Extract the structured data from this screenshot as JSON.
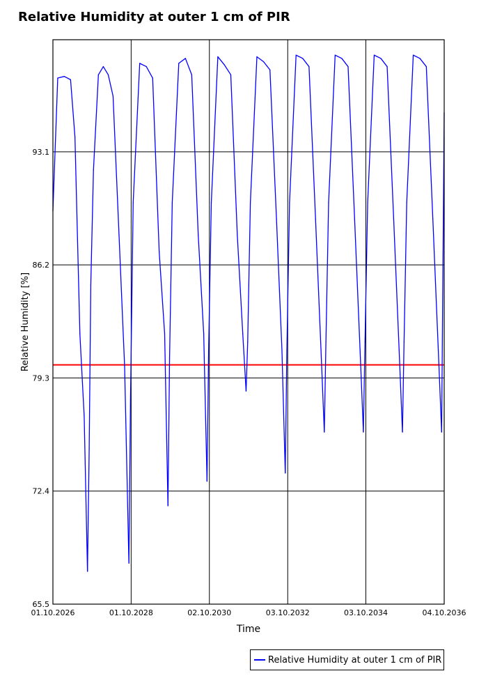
{
  "chart_data": {
    "type": "line",
    "title": "Relative Humidity at outer 1 cm of PIR",
    "xlabel": "Time",
    "ylabel": "Relative Humidity [%]",
    "ylim": [
      65.5,
      99.94
    ],
    "y_ticks": [
      "65.5",
      "72.4",
      "79.3",
      "86.2",
      "93.1"
    ],
    "x_ticks": [
      "01.10.2026",
      "01.10.2028",
      "02.10.2030",
      "03.10.2032",
      "03.10.2034",
      "04.10.2036"
    ],
    "xlim": [
      "2026-10-01",
      "2036-10-04"
    ],
    "grid": true,
    "legend_position": "bottom-right",
    "reference_line": {
      "y": 80.1,
      "color": "#ff0000"
    },
    "series": [
      {
        "name": "Relative Humidity at outer 1 cm of PIR",
        "color": "#0000ff",
        "x": [
          "2026-10-01",
          "2026-11-15",
          "2027-01-15",
          "2027-03-15",
          "2027-04-25",
          "2027-06-10",
          "2027-07-20",
          "2027-08-20",
          "2027-09-05",
          "2027-09-20",
          "2027-10-15",
          "2027-11-30",
          "2028-01-15",
          "2028-03-01",
          "2028-04-15",
          "2028-06-10",
          "2028-08-01",
          "2028-09-10",
          "2028-09-25",
          "2028-10-20",
          "2028-12-20",
          "2029-02-20",
          "2029-04-20",
          "2029-06-20",
          "2029-08-10",
          "2029-09-10",
          "2029-09-25",
          "2029-10-20",
          "2029-12-20",
          "2030-02-20",
          "2030-04-20",
          "2030-06-20",
          "2030-08-10",
          "2030-09-10",
          "2030-09-25",
          "2030-10-20",
          "2030-12-20",
          "2031-02-20",
          "2031-04-20",
          "2031-06-20",
          "2031-08-10",
          "2031-09-10",
          "2031-09-25",
          "2031-10-20",
          "2031-12-20",
          "2032-02-20",
          "2032-04-20",
          "2032-06-20",
          "2032-08-10",
          "2032-09-10",
          "2032-09-25",
          "2032-10-20",
          "2032-12-20",
          "2033-02-20",
          "2033-04-20",
          "2033-06-20",
          "2033-08-10",
          "2033-09-10",
          "2033-09-25",
          "2033-10-20",
          "2033-12-20",
          "2034-02-20",
          "2034-04-20",
          "2034-06-20",
          "2034-08-10",
          "2034-09-10",
          "2034-09-25",
          "2034-10-20",
          "2034-12-20",
          "2035-02-20",
          "2035-04-20",
          "2035-06-20",
          "2035-08-10",
          "2035-09-10",
          "2035-09-25",
          "2035-10-20",
          "2035-12-20",
          "2036-02-20",
          "2036-04-20",
          "2036-06-20",
          "2036-08-10",
          "2036-09-10",
          "2036-10-04"
        ],
        "y": [
          89.5,
          97.6,
          97.7,
          97.5,
          94.0,
          82.0,
          77.0,
          67.5,
          75.0,
          85.0,
          92.0,
          97.8,
          98.3,
          97.8,
          96.5,
          88.0,
          80.0,
          68.0,
          78.0,
          90.0,
          98.5,
          98.3,
          97.6,
          87.0,
          82.0,
          71.5,
          80.5,
          90.0,
          98.5,
          98.8,
          97.8,
          88.0,
          82.0,
          73.0,
          81.0,
          90.0,
          98.9,
          98.4,
          97.8,
          88.0,
          82.0,
          78.5,
          81.5,
          90.0,
          98.9,
          98.6,
          98.1,
          89.0,
          81.0,
          73.5,
          81.0,
          90.0,
          99.0,
          98.8,
          98.3,
          89.0,
          81.0,
          76.0,
          81.5,
          90.0,
          99.0,
          98.8,
          98.3,
          89.0,
          81.0,
          76.0,
          81.5,
          90.0,
          99.0,
          98.8,
          98.3,
          89.0,
          81.0,
          76.0,
          81.5,
          90.0,
          99.0,
          98.8,
          98.3,
          89.0,
          81.0,
          76.0,
          95.5
        ]
      }
    ]
  },
  "legend": {
    "label": "Relative Humidity at outer 1 cm of PIR"
  }
}
